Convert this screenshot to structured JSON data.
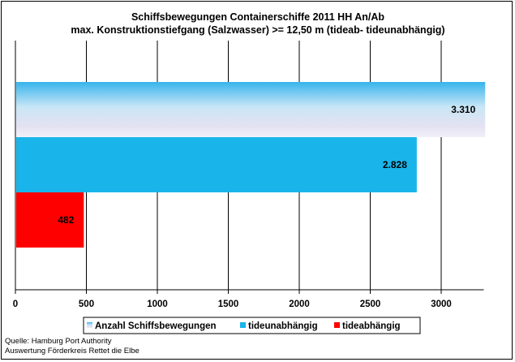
{
  "source": {
    "line1": "Quelle: Hamburg Port Authority",
    "line2": "Auswertung Förderkreis Rettet die Elbe"
  },
  "chart_data": {
    "type": "bar",
    "orientation": "horizontal",
    "title": "Schiffsbewegungen  Containerschiffe  2011 HH An/Ab",
    "subtitle": "max. Konstruktionstiefgang  (Salzwasser)  >= 12,50 m (tideab-  tideunabhängig)",
    "xlim": [
      0,
      3300
    ],
    "xticks": [
      0,
      500,
      1000,
      1500,
      2000,
      2500,
      3000
    ],
    "xtick_labels": [
      "0",
      "500",
      "1000",
      "1500",
      "2000",
      "2500",
      "3000"
    ],
    "grid": true,
    "legend_position": "bottom",
    "series": [
      {
        "name": "Anzahl Schiffsbewegungen",
        "value": 3310,
        "label": "3.310",
        "color": "#3fb8ec",
        "fill": "gradient"
      },
      {
        "name": "tideunabhängig",
        "value": 2828,
        "label": "2.828",
        "color": "#19b5ea",
        "fill": "solid"
      },
      {
        "name": "tideabhängig",
        "value": 482,
        "label": "482",
        "color": "#ff0000",
        "fill": "solid"
      }
    ]
  }
}
